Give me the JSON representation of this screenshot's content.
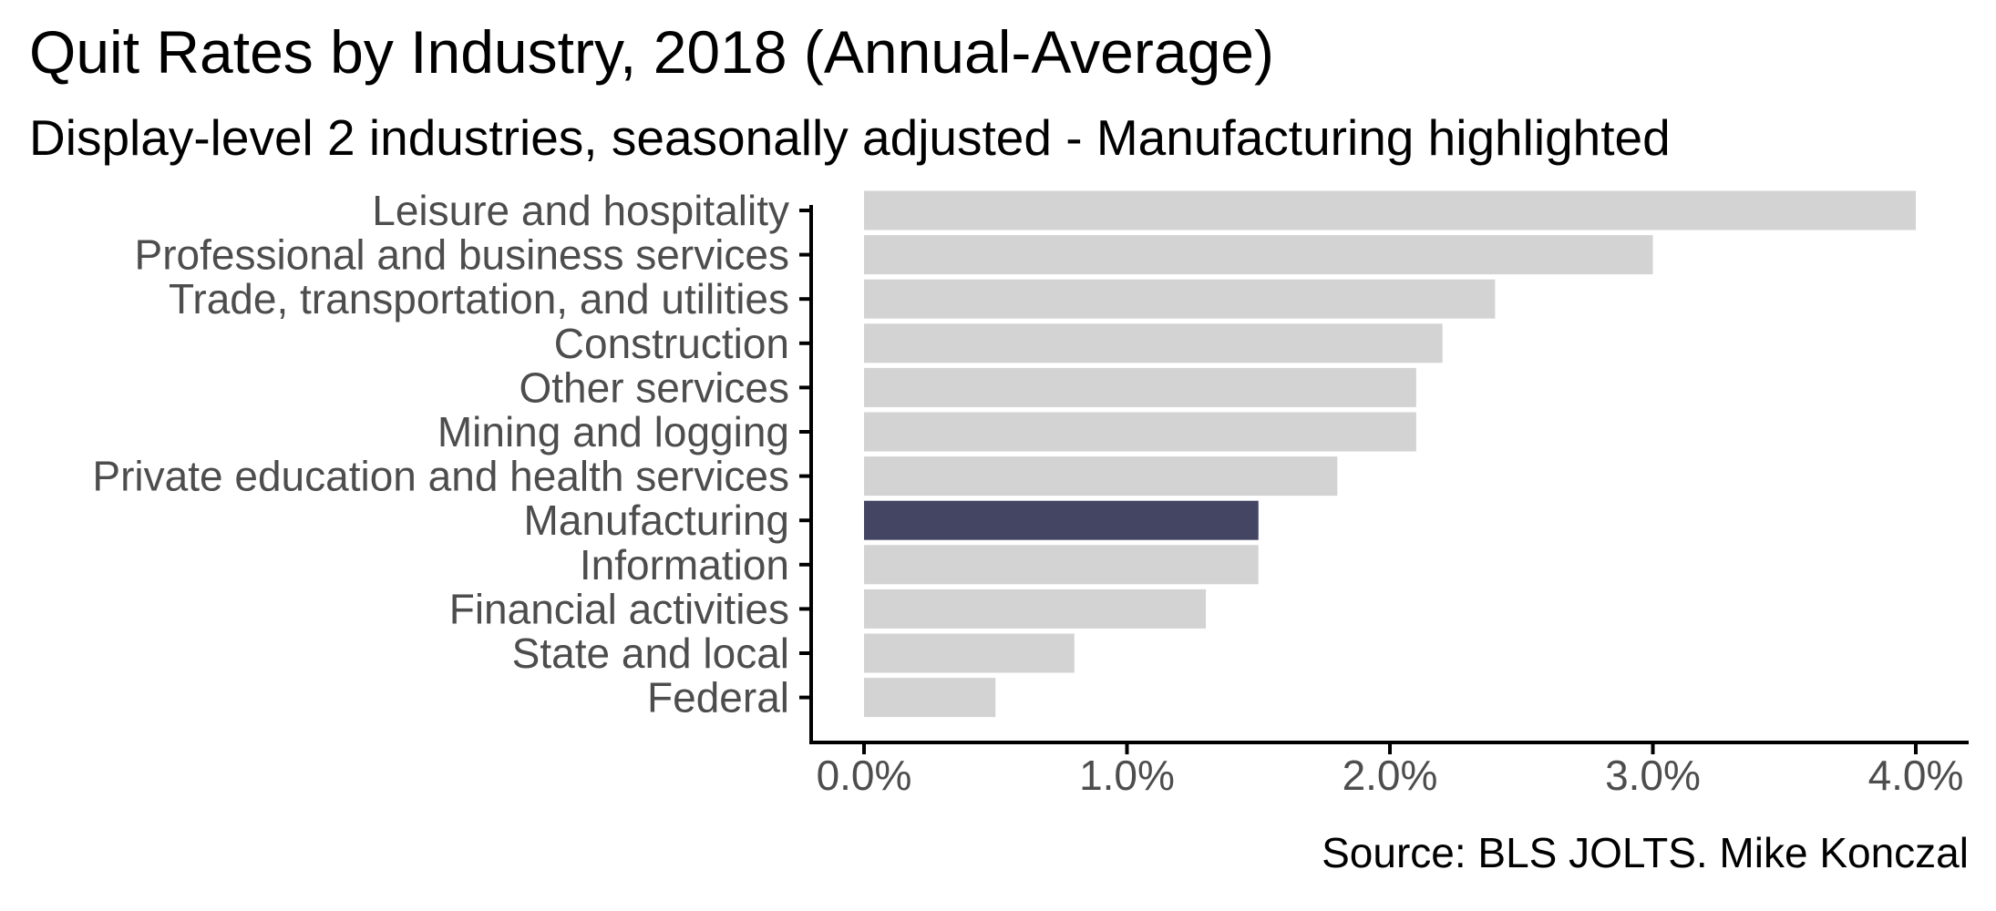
{
  "title": "Quit Rates by Industry, 2018 (Annual-Average)",
  "subtitle": "Display-level 2 industries, seasonally adjusted - Manufacturing highlighted",
  "caption": "Source: BLS JOLTS. Mike Konczal",
  "colors": {
    "bar_default": "#d3d3d3",
    "bar_highlight": "#434563",
    "axis": "#000000",
    "label": "#4d4d4d"
  },
  "chart_data": {
    "type": "bar",
    "orientation": "horizontal",
    "categories": [
      "Leisure and hospitality",
      "Professional and business services",
      "Trade, transportation, and utilities",
      "Construction",
      "Other services",
      "Mining and logging",
      "Private education and health services",
      "Manufacturing",
      "Information",
      "Financial activities",
      "State and local",
      "Federal"
    ],
    "values": [
      4.0,
      3.0,
      2.4,
      2.2,
      2.1,
      2.1,
      1.8,
      1.5,
      1.5,
      1.3,
      0.8,
      0.5
    ],
    "highlight": "Manufacturing",
    "xlim": [
      0,
      4.0
    ],
    "x_ticks": [
      0,
      1,
      2,
      3,
      4
    ],
    "x_tick_labels": [
      "0.0%",
      "1.0%",
      "2.0%",
      "3.0%",
      "4.0%"
    ],
    "xlabel": "",
    "ylabel": "",
    "grid": false,
    "legend": "none"
  }
}
